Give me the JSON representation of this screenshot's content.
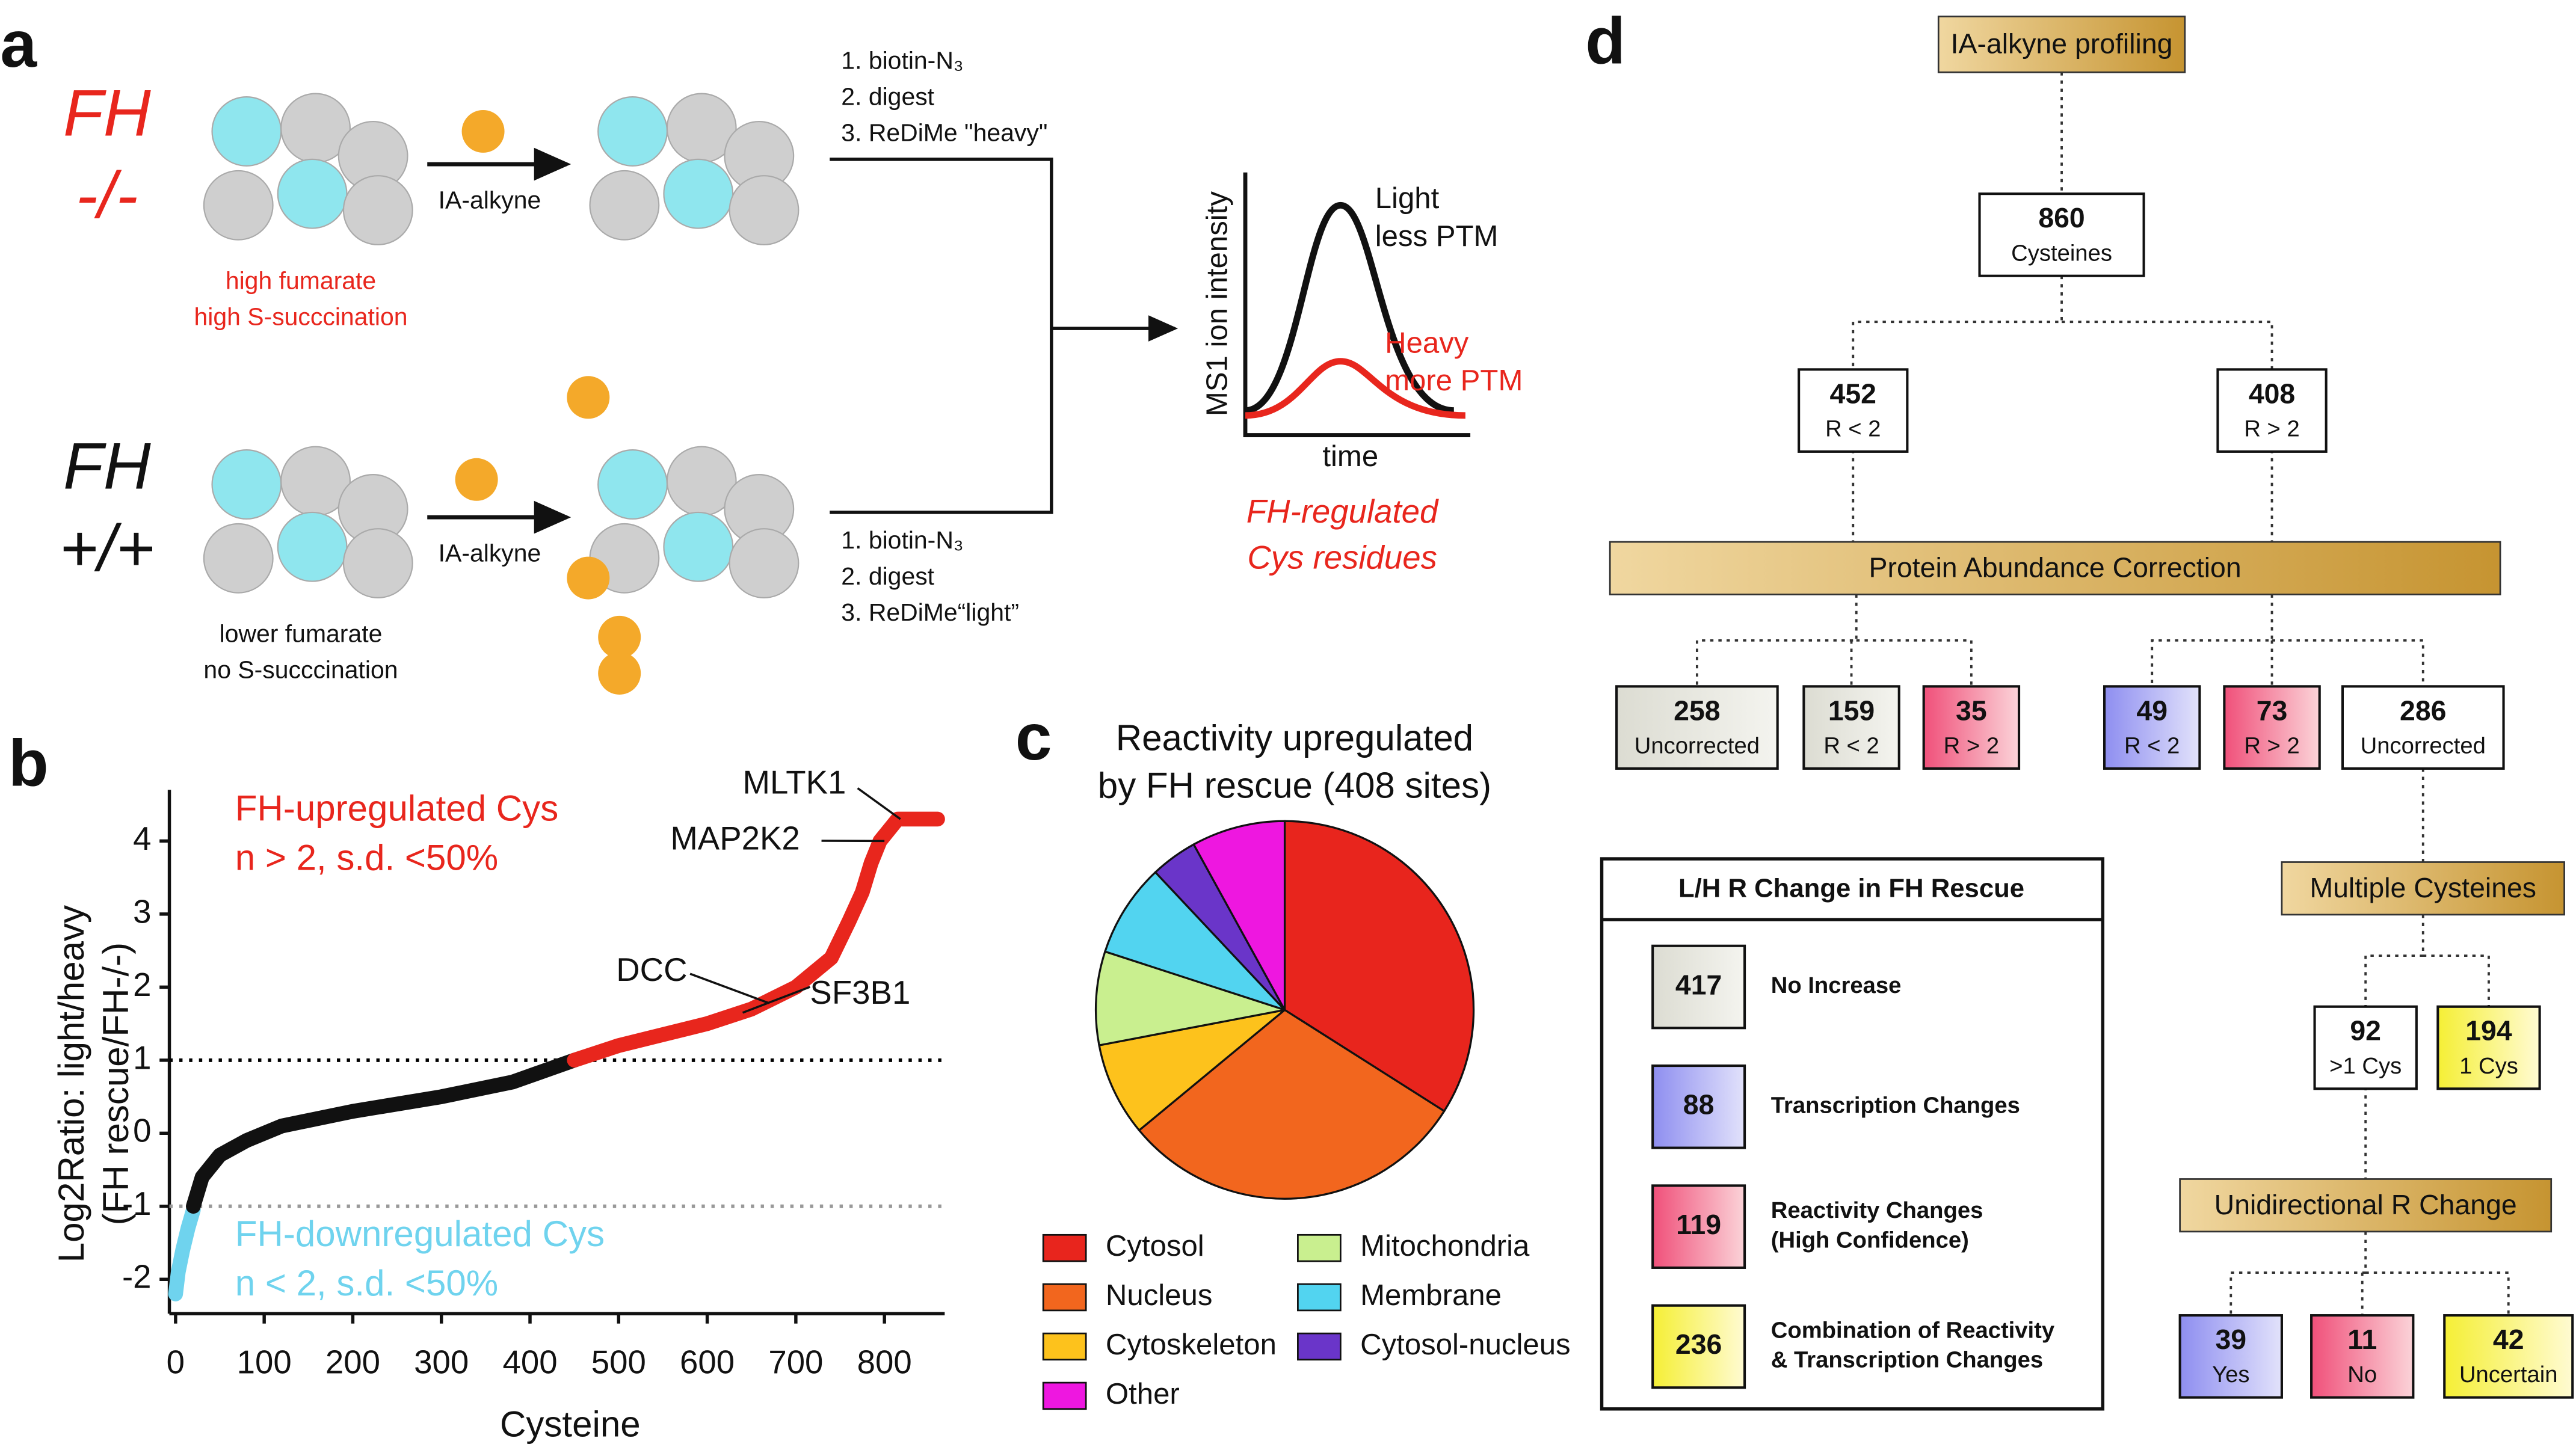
{
  "panel_labels": [
    "a",
    "b",
    "c",
    "d"
  ],
  "panel_a": {
    "top": {
      "genotype": [
        "FH",
        "-/-"
      ],
      "reagent": "IA-alkyne",
      "condition": [
        "high fumarate",
        "high S-succcination"
      ],
      "steps": [
        "1. biotin-N₃",
        "2. digest",
        "3. ReDiMe \"heavy\""
      ]
    },
    "bottom": {
      "genotype": [
        "FH",
        "+/+"
      ],
      "reagent": "IA-alkyne",
      "condition": [
        "lower fumarate",
        "no S-succcination"
      ],
      "steps": [
        "1. biotin-N₃",
        "2. digest",
        "3. ReDiMe“light”"
      ]
    },
    "ms1": {
      "y_label": "MS1 ion intensity",
      "x_label": "time",
      "light": [
        "Light",
        "less PTM"
      ],
      "heavy": [
        "Heavy",
        "more PTM"
      ],
      "result": [
        "FH-regulated",
        "Cys residues"
      ]
    }
  },
  "chart_data": [
    {
      "type": "line",
      "x_label": "Cysteine",
      "y_label": [
        "Log2Ratio: light/heavy",
        "(FH rescue/FH-/-)"
      ],
      "xlim": [
        -7,
        868
      ],
      "ylim": [
        -2.47,
        4.7
      ],
      "xticks": [
        0,
        100,
        200,
        300,
        400,
        500,
        600,
        700,
        800
      ],
      "yticks": [
        -2,
        -1,
        0,
        1,
        2,
        3,
        4
      ],
      "hlines": [
        {
          "value": 1,
          "color": "#000000"
        },
        {
          "value": -1,
          "color": "#999999"
        }
      ],
      "series": [
        {
          "color": "#6fd3ee",
          "x": [
            0,
            3,
            8,
            14,
            20
          ],
          "values": [
            -2.2,
            -1.9,
            -1.6,
            -1.3,
            -1.05
          ]
        },
        {
          "color": "#111111",
          "x": [
            20,
            30,
            50,
            80,
            120,
            200,
            300,
            380,
            450
          ],
          "values": [
            -1,
            -0.6,
            -0.3,
            -0.1,
            0.1,
            0.3,
            0.5,
            0.7,
            1.0
          ]
        },
        {
          "color": "#e8261d",
          "x": [
            450,
            500,
            550,
            600,
            650,
            700,
            740,
            760,
            775,
            785,
            795,
            805,
            815,
            830,
            860
          ],
          "values": [
            1.0,
            1.2,
            1.35,
            1.5,
            1.7,
            2.0,
            2.4,
            2.9,
            3.3,
            3.7,
            4.0,
            4.15,
            4.3,
            4.3,
            4.3
          ]
        }
      ],
      "annotations": [
        {
          "text": "MLTK1",
          "x": 818,
          "y": 4.3
        },
        {
          "text": "MAP2K2",
          "x": 800,
          "y": 4.0
        },
        {
          "text": "DCC",
          "x": 670,
          "y": 1.78
        },
        {
          "text": "SF3B1",
          "x": 640,
          "y": 1.65
        }
      ],
      "notes": [
        {
          "lines": [
            "FH-upregulated Cys",
            "n > 2, s.d. <50%"
          ],
          "color": "#e8261d"
        },
        {
          "lines": [
            "FH-downregulated Cys",
            "n < 2, s.d. <50%"
          ],
          "color": "#6fd3ee"
        }
      ]
    },
    {
      "type": "pie",
      "title": [
        "Reactivity upregulated",
        "by FH rescue (408 sites)"
      ],
      "categories": [
        "Cytosol",
        "Nucleus",
        "Cytoskeleton",
        "Mitochondria",
        "Membrane",
        "Cytosol-nucleus",
        "Other"
      ],
      "values": [
        34,
        30,
        8,
        8,
        8,
        4,
        8
      ],
      "colors": [
        "#e8251d",
        "#f2661e",
        "#fdc21c",
        "#c9ef8f",
        "#52d4f0",
        "#6a35c9",
        "#ee17e0"
      ]
    }
  ],
  "panel_d": {
    "bars": [
      {
        "text": "IA-alkyne profiling"
      },
      {
        "text": "Protein Abundance Correction"
      },
      {
        "text": "Multiple Cysteines"
      },
      {
        "text": "Unidirectional R Change"
      }
    ],
    "boxes": [
      {
        "value": 860,
        "label": "Cysteines",
        "style": "white"
      },
      {
        "value": 452,
        "label": "R < 2",
        "style": "white"
      },
      {
        "value": 408,
        "label": "R > 2",
        "style": "white"
      },
      {
        "value": 258,
        "label": "Uncorrected",
        "style": "gray"
      },
      {
        "value": 159,
        "label": "R < 2",
        "style": "gray"
      },
      {
        "value": 35,
        "label": "R > 2",
        "style": "pink"
      },
      {
        "value": 49,
        "label": "R < 2",
        "style": "blue"
      },
      {
        "value": 73,
        "label": "R > 2",
        "style": "pink"
      },
      {
        "value": 286,
        "label": "Uncorrected",
        "style": "white"
      },
      {
        "value": 92,
        "label": ">1 Cys",
        "style": "white"
      },
      {
        "value": 194,
        "label": "1 Cys",
        "style": "yellow"
      },
      {
        "value": 39,
        "label": "Yes",
        "style": "blue"
      },
      {
        "value": 11,
        "label": "No",
        "style": "pink"
      },
      {
        "value": 42,
        "label": "Uncertain",
        "style": "yellow"
      }
    ],
    "legend": {
      "title": "L/H R Change in FH Rescue",
      "items": [
        {
          "value": 417,
          "label": [
            "No Increase"
          ],
          "style": "gray"
        },
        {
          "value": 88,
          "label": [
            "Transcription Changes"
          ],
          "style": "blue"
        },
        {
          "value": 119,
          "label": [
            "Reactivity Changes",
            "(High Confidence)"
          ],
          "style": "pink"
        },
        {
          "value": 236,
          "label": [
            "Combination of Reactivity",
            "& Transcription Changes"
          ],
          "style": "yellow"
        }
      ]
    }
  }
}
